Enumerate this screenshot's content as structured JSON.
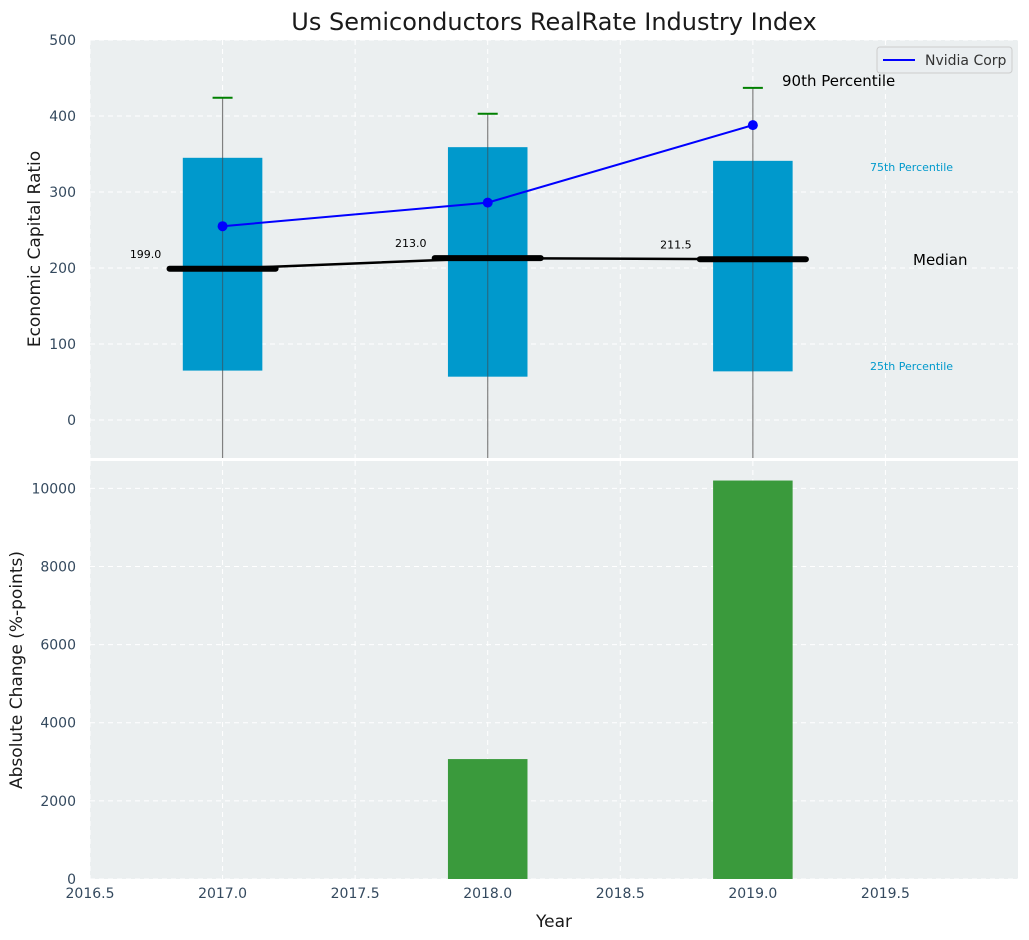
{
  "chart_data": [
    {
      "type": "box",
      "title": "Us Semiconductors RealRate Industry Index",
      "ylabel": "Economic Capital Ratio",
      "ylim": [
        -50,
        500
      ],
      "yticks": [
        0,
        100,
        200,
        300,
        400,
        500
      ],
      "grid": true,
      "x": [
        2017,
        2018,
        2019
      ],
      "p25": [
        65,
        57,
        64
      ],
      "p75": [
        345,
        359,
        341
      ],
      "p90": [
        424,
        403,
        437
      ],
      "median": [
        199.0,
        213.0,
        211.5
      ],
      "median_labels": [
        "199.0",
        "213.0",
        "211.5"
      ],
      "series": [
        {
          "name": "Nvidia Corp",
          "x": [
            2017,
            2018,
            2019
          ],
          "values": [
            255,
            286,
            388
          ],
          "color": "#0000ff"
        }
      ],
      "legend_position": "top-right",
      "annotations": {
        "p90": "90th Percentile",
        "p75": "75th Percentile",
        "median": "Median",
        "p25": "25th Percentile"
      },
      "colors": {
        "box": "#0099cc",
        "p90": "#008000",
        "median": "#000000",
        "background": "#ebeff0"
      }
    },
    {
      "type": "bar",
      "xlabel": "Year",
      "ylabel": "Absolute Change (%-points)",
      "x": [
        2018,
        2019
      ],
      "values": [
        3070,
        10200
      ],
      "ylim": [
        0,
        10700
      ],
      "yticks": [
        0,
        2000,
        4000,
        6000,
        8000,
        10000
      ],
      "xlim": [
        2016.5,
        2020.0
      ],
      "xticks": [
        2016.5,
        2017.0,
        2017.5,
        2018.0,
        2018.5,
        2019.0,
        2019.5
      ],
      "xtick_labels": [
        "2016.5",
        "2017.0",
        "2017.5",
        "2018.0",
        "2018.5",
        "2019.0",
        "2019.5"
      ],
      "grid": true,
      "colors": {
        "bar": "#3a9a3c",
        "background": "#ebeff0"
      }
    }
  ]
}
